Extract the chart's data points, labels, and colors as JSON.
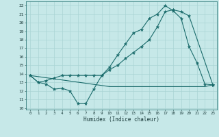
{
  "xlabel": "Humidex (Indice chaleur)",
  "background_color": "#c6e8e8",
  "grid_color": "#aad4d4",
  "line_color": "#1a6b6b",
  "xlim": [
    -0.5,
    23.5
  ],
  "ylim": [
    9.8,
    22.5
  ],
  "yticks": [
    10,
    11,
    12,
    13,
    14,
    15,
    16,
    17,
    18,
    19,
    20,
    21,
    22
  ],
  "xticks": [
    0,
    1,
    2,
    3,
    4,
    5,
    6,
    7,
    8,
    9,
    10,
    11,
    12,
    13,
    14,
    15,
    16,
    17,
    18,
    19,
    20,
    21,
    22,
    23
  ],
  "line1_x": [
    0,
    1,
    2,
    3,
    4,
    5,
    6,
    7,
    8,
    9,
    10,
    11,
    12,
    13,
    14,
    15,
    16,
    17,
    18,
    19,
    20,
    21,
    22,
    23
  ],
  "line1_y": [
    13.8,
    13.0,
    12.8,
    12.2,
    12.3,
    12.0,
    10.5,
    10.5,
    12.2,
    13.8,
    14.8,
    16.2,
    17.5,
    18.8,
    19.2,
    20.5,
    21.0,
    22.0,
    21.4,
    20.5,
    17.2,
    15.3,
    12.8,
    12.7
  ],
  "line2_x": [
    0,
    1,
    2,
    3,
    4,
    5,
    6,
    7,
    8,
    9,
    10,
    11,
    12,
    13,
    14,
    15,
    16,
    17,
    18,
    19,
    20,
    23
  ],
  "line2_y": [
    13.8,
    13.0,
    13.2,
    13.5,
    13.8,
    13.8,
    13.8,
    13.8,
    13.8,
    13.8,
    14.5,
    15.0,
    15.8,
    16.5,
    17.2,
    18.0,
    19.5,
    21.3,
    21.5,
    21.3,
    20.8,
    12.7
  ],
  "line3_x": [
    0,
    10,
    11,
    12,
    13,
    14,
    15,
    16,
    17,
    18,
    19,
    20,
    21,
    22,
    23
  ],
  "line3_y": [
    13.8,
    12.5,
    12.5,
    12.5,
    12.5,
    12.5,
    12.5,
    12.5,
    12.5,
    12.5,
    12.5,
    12.5,
    12.5,
    12.5,
    12.7
  ]
}
